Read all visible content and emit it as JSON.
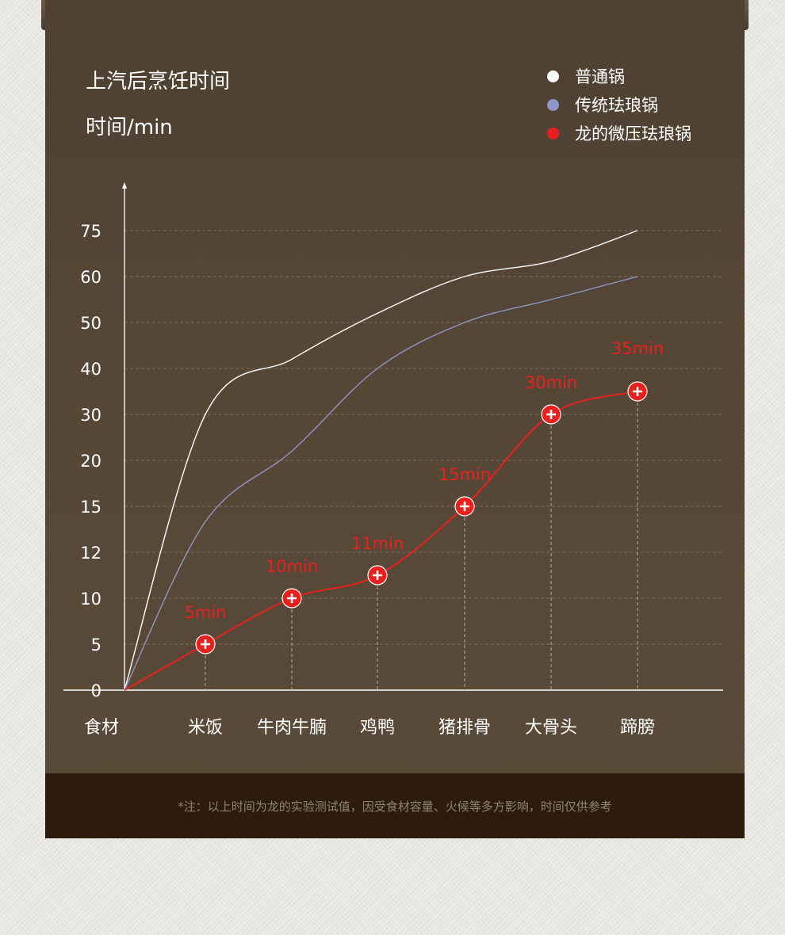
{
  "title": "上汽后烹饪时间",
  "unit_label": "时间/min",
  "legend": [
    {
      "label": "普通锅",
      "color": "#ffffff"
    },
    {
      "label": "传统珐琅锅",
      "color": "#8f96c8"
    },
    {
      "label": "龙的微压珐琅锅",
      "color": "#e8211f"
    }
  ],
  "footer_note": "*注：以上时间为龙的实验测试值，因受食材容量、火候等多方影响，时间仅供参考",
  "chart_data": {
    "type": "line",
    "xlabel": "食材",
    "ylabel": "时间/min",
    "categories": [
      "米饭",
      "牛肉牛腩",
      "鸡鸭",
      "猪排骨",
      "大骨头",
      "蹄膀"
    ],
    "y_ticks": [
      "0",
      "5",
      "10",
      "12",
      "15",
      "20",
      "30",
      "40",
      "50",
      "60",
      "75"
    ],
    "series": [
      {
        "name": "普通锅",
        "color": "#ffffff",
        "values": [
          30,
          42,
          52,
          60,
          65,
          75
        ]
      },
      {
        "name": "传统珐琅锅",
        "color": "#8f96c8",
        "values": [
          14,
          22,
          40,
          50,
          55,
          60
        ]
      },
      {
        "name": "龙的微压珐琅锅",
        "color": "#e8211f",
        "values": [
          5,
          10,
          11,
          15,
          30,
          35
        ],
        "point_labels": [
          "5min",
          "10min",
          "11min",
          "15min",
          "30min",
          "35min"
        ]
      }
    ],
    "grid": true,
    "legend_position": "top-right"
  }
}
